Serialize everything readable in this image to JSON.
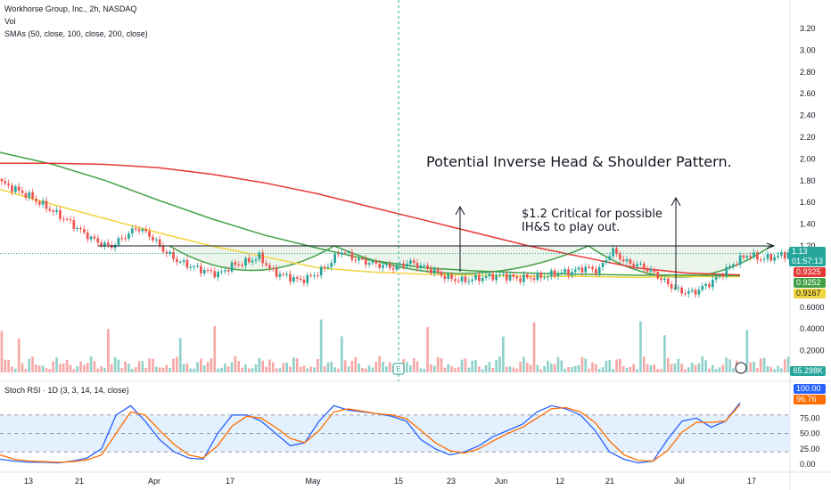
{
  "header": {
    "title": "Workhorse Group, Inc., 2h, NASDAQ",
    "vol_label": "Vol",
    "sma_label": "SMAs (50, close, 100, close, 200, close)"
  },
  "annotations": {
    "pattern": "Potential Inverse Head & Shoulder Pattern.",
    "critical_1": "$1.2 Critical for possible",
    "critical_2": "IH&S to play out."
  },
  "price_badges": {
    "last_price": "1.13",
    "countdown": "01:57:13",
    "sma_red": "0.9325",
    "sma_green": "0.9252",
    "sma_yellow": "0.9167",
    "volume": "65.298K"
  },
  "rsi": {
    "label": "Stoch RSI · 1D (3, 3, 14, 14, close)",
    "k_value": "100.00",
    "d_value": "96.76"
  },
  "colors": {
    "up": "#26a69a",
    "down": "#ef5350",
    "sma50": "#f2d43d",
    "sma100": "#43a047",
    "sma200": "#e53935",
    "k_line": "#2962ff",
    "d_line": "#ff6d00",
    "rsi_band": "#e3f0fd",
    "badge_price": "#26a69a",
    "badge_k": "#2962ff",
    "badge_d": "#ff6d00"
  },
  "chart_data": {
    "type": "candlestick",
    "price_axis_ticks": [
      "3.20",
      "3.00",
      "2.80",
      "2.60",
      "2.40",
      "2.20",
      "2.00",
      "1.80",
      "1.60",
      "1.40",
      "1.20",
      "0.6000",
      "0.4000",
      "0.2000"
    ],
    "rsi_axis_ticks": [
      "75.00",
      "50.00",
      "25.00",
      "0.00"
    ],
    "x_tick_labels": [
      "13",
      "21",
      "Apr",
      "17",
      "May",
      "15",
      "23",
      "Jun",
      "12",
      "21",
      "Jul",
      "17"
    ],
    "neckline": 1.2,
    "sma50_end": 0.9167,
    "sma100_end": 0.9252,
    "sma200_end": 0.9325,
    "last_close": 1.13,
    "close_series": [
      1.78,
      1.72,
      1.66,
      1.58,
      1.5,
      1.42,
      1.32,
      1.24,
      1.19,
      1.28,
      1.37,
      1.29,
      1.15,
      1.06,
      1.01,
      0.97,
      0.94,
      1.02,
      1.05,
      1.1,
      0.96,
      0.92,
      0.88,
      0.93,
      1.01,
      1.16,
      1.08,
      1.05,
      1.02,
      1.0,
      1.05,
      1.01,
      0.96,
      0.9,
      0.88,
      0.9,
      0.92,
      0.93,
      0.9,
      0.91,
      0.92,
      0.95,
      0.96,
      1.0,
      0.97,
      1.16,
      1.05,
      1.02,
      0.96,
      0.86,
      0.78,
      0.77,
      0.84,
      0.93,
      1.04,
      1.12,
      1.08,
      1.1,
      1.13
    ],
    "stoch_k": [
      8,
      5,
      3,
      3,
      2,
      5,
      10,
      25,
      80,
      95,
      70,
      40,
      20,
      10,
      8,
      50,
      80,
      80,
      70,
      50,
      30,
      35,
      70,
      95,
      88,
      85,
      82,
      78,
      70,
      40,
      25,
      15,
      20,
      30,
      45,
      55,
      65,
      85,
      95,
      90,
      80,
      55,
      20,
      8,
      2,
      5,
      40,
      70,
      75,
      60,
      70,
      100
    ],
    "stoch_d": [
      15,
      8,
      5,
      4,
      3,
      4,
      7,
      15,
      50,
      85,
      80,
      55,
      32,
      15,
      10,
      30,
      62,
      78,
      75,
      60,
      42,
      35,
      55,
      85,
      90,
      86,
      82,
      80,
      74,
      55,
      35,
      22,
      18,
      25,
      38,
      50,
      60,
      75,
      90,
      92,
      85,
      68,
      38,
      15,
      6,
      5,
      22,
      52,
      68,
      68,
      70,
      97
    ]
  }
}
